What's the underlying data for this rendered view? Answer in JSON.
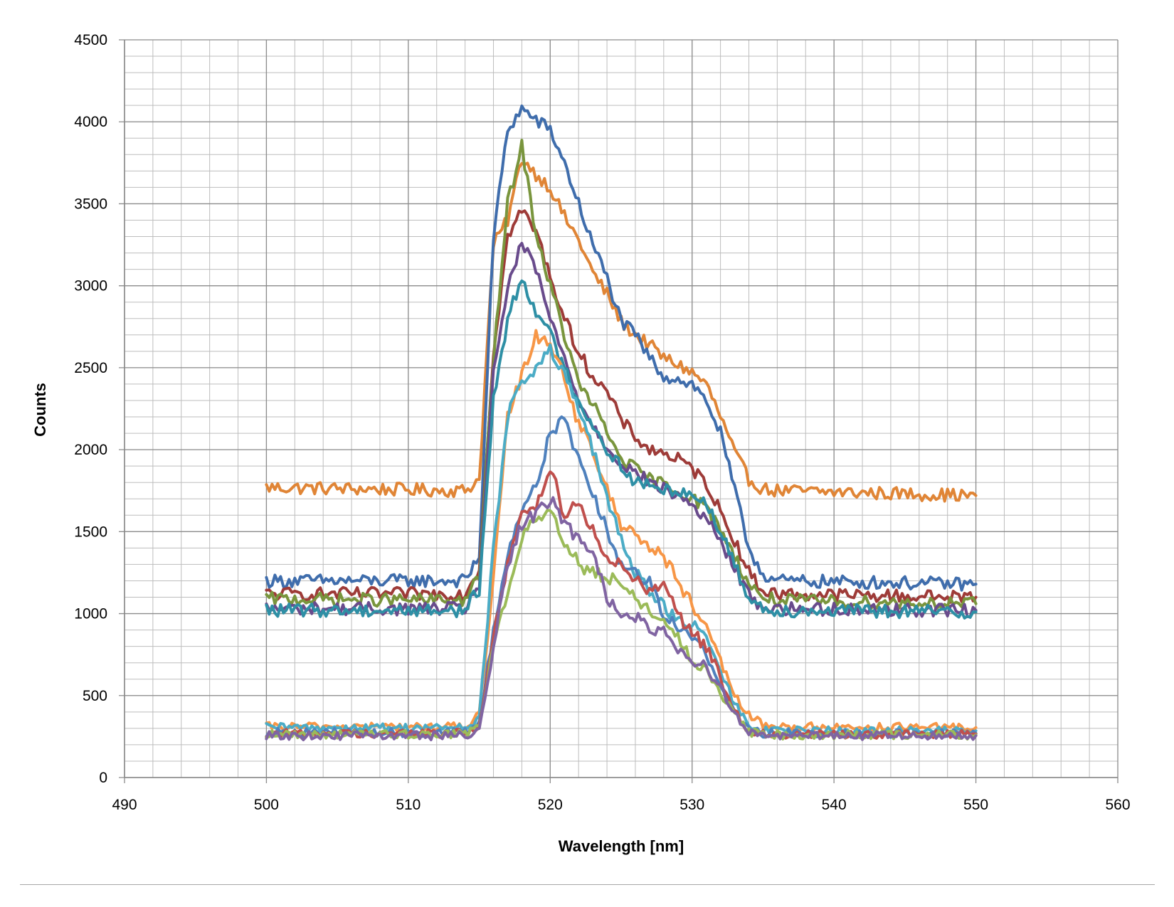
{
  "chart_data": {
    "type": "line",
    "title": "",
    "xlabel": "Wavelength [nm]",
    "ylabel": "Counts",
    "xlim": [
      490,
      560
    ],
    "ylim": [
      0,
      4500
    ],
    "x_ticks": [
      490,
      500,
      510,
      520,
      530,
      540,
      550,
      560
    ],
    "y_ticks": [
      0,
      500,
      1000,
      1500,
      2000,
      2500,
      3000,
      3500,
      4000,
      4500
    ],
    "x_minor_step": 2,
    "y_minor_step": 100,
    "grid": "on (major and minor)",
    "legend": "none",
    "series": [
      {
        "color": "#E08536",
        "x": [
          500,
          514,
          515,
          516,
          517,
          518,
          519,
          520,
          521,
          522,
          523,
          524,
          525,
          526,
          527,
          528,
          529,
          530,
          531,
          532,
          533,
          534,
          535,
          536,
          550
        ],
        "y": [
          1770,
          1750,
          1820,
          3250,
          3400,
          3780,
          3680,
          3600,
          3420,
          3280,
          3080,
          2950,
          2780,
          2700,
          2640,
          2560,
          2520,
          2470,
          2400,
          2200,
          1980,
          1820,
          1760,
          1750,
          1720
        ]
      },
      {
        "color": "#3F6DAC",
        "x": [
          500,
          514,
          515,
          516,
          517,
          518,
          519,
          520,
          521,
          522,
          523,
          524,
          525,
          526,
          527,
          528,
          529,
          530,
          531,
          532,
          533,
          534,
          535,
          536,
          550
        ],
        "y": [
          1200,
          1200,
          1350,
          3300,
          3950,
          4080,
          4010,
          3950,
          3750,
          3500,
          3250,
          3050,
          2780,
          2700,
          2560,
          2450,
          2430,
          2400,
          2300,
          2100,
          1750,
          1400,
          1240,
          1200,
          1180
        ]
      },
      {
        "color": "#9E3B38",
        "x": [
          500,
          514,
          515,
          516,
          517,
          518,
          519,
          520,
          521,
          522,
          523,
          524,
          525,
          526,
          527,
          528,
          529,
          530,
          531,
          532,
          533,
          534,
          535,
          536,
          550
        ],
        "y": [
          1120,
          1120,
          1280,
          2600,
          3300,
          3460,
          3330,
          3060,
          2800,
          2600,
          2450,
          2350,
          2180,
          2080,
          2000,
          1980,
          1940,
          1880,
          1800,
          1620,
          1450,
          1250,
          1140,
          1120,
          1100
        ]
      },
      {
        "color": "#79953D",
        "x": [
          500,
          514,
          515,
          516,
          517,
          518,
          519,
          520,
          521,
          522,
          523,
          524,
          525,
          526,
          527,
          528,
          529,
          530,
          531,
          532,
          533,
          534,
          535,
          536,
          550
        ],
        "y": [
          1090,
          1080,
          1230,
          2550,
          3500,
          3850,
          3320,
          3000,
          2700,
          2400,
          2280,
          2100,
          1950,
          1880,
          1820,
          1790,
          1750,
          1710,
          1640,
          1520,
          1350,
          1180,
          1100,
          1080,
          1060
        ]
      },
      {
        "color": "#694B8C",
        "x": [
          500,
          514,
          515,
          516,
          517,
          518,
          519,
          520,
          521,
          522,
          523,
          524,
          525,
          526,
          527,
          528,
          529,
          530,
          531,
          532,
          533,
          534,
          535,
          536,
          550
        ],
        "y": [
          1030,
          1030,
          1180,
          2450,
          3000,
          3250,
          3100,
          2800,
          2550,
          2300,
          2150,
          2020,
          1920,
          1860,
          1800,
          1760,
          1720,
          1660,
          1580,
          1440,
          1280,
          1110,
          1040,
          1030,
          1020
        ]
      },
      {
        "color": "#2E8FA5",
        "x": [
          500,
          514,
          515,
          516,
          517,
          518,
          519,
          520,
          521,
          522,
          523,
          524,
          525,
          526,
          527,
          528,
          529,
          530,
          531,
          532,
          533,
          534,
          535,
          536,
          550
        ],
        "y": [
          1020,
          1020,
          1150,
          2300,
          2800,
          3050,
          2850,
          2700,
          2500,
          2300,
          2150,
          2000,
          1900,
          1800,
          1780,
          1750,
          1760,
          1720,
          1680,
          1500,
          1300,
          1100,
          1030,
          1020,
          1010
        ]
      },
      {
        "color": "#F79646",
        "x": [
          500,
          514,
          515,
          516,
          517,
          518,
          519,
          520,
          521,
          522,
          523,
          524,
          525,
          526,
          527,
          528,
          529,
          530,
          531,
          532,
          533,
          534,
          535,
          536,
          550
        ],
        "y": [
          310,
          310,
          380,
          1200,
          2200,
          2450,
          2700,
          2650,
          2450,
          2150,
          2000,
          1750,
          1550,
          1500,
          1400,
          1350,
          1200,
          1050,
          900,
          700,
          500,
          380,
          320,
          310,
          305
        ]
      },
      {
        "color": "#4BACC6",
        "x": [
          500,
          514,
          515,
          516,
          517,
          518,
          519,
          520,
          521,
          522,
          523,
          524,
          525,
          526,
          527,
          528,
          529,
          530,
          531,
          532,
          533,
          534,
          535,
          536,
          550
        ],
        "y": [
          305,
          305,
          360,
          1400,
          2200,
          2420,
          2500,
          2600,
          2450,
          2250,
          2000,
          1700,
          1450,
          1250,
          1150,
          1050,
          950,
          930,
          850,
          650,
          450,
          320,
          290,
          285,
          285
        ]
      },
      {
        "color": "#4F81BD",
        "x": [
          500,
          514,
          515,
          516,
          517,
          518,
          519,
          520,
          521,
          522,
          523,
          524,
          525,
          526,
          527,
          528,
          529,
          530,
          531,
          532,
          533,
          534,
          535,
          536,
          550
        ],
        "y": [
          275,
          275,
          330,
          900,
          1350,
          1650,
          1780,
          2100,
          2180,
          1950,
          1750,
          1500,
          1300,
          1250,
          1200,
          1000,
          920,
          850,
          750,
          580,
          400,
          290,
          270,
          270,
          270
        ]
      },
      {
        "color": "#C0504D",
        "x": [
          500,
          514,
          515,
          516,
          517,
          518,
          519,
          520,
          521,
          522,
          523,
          524,
          525,
          526,
          527,
          528,
          529,
          530,
          531,
          532,
          533,
          534,
          535,
          536,
          550
        ],
        "y": [
          270,
          270,
          320,
          850,
          1300,
          1600,
          1650,
          1900,
          1600,
          1700,
          1500,
          1350,
          1300,
          1200,
          1150,
          1200,
          1000,
          880,
          800,
          600,
          400,
          290,
          265,
          265,
          265
        ]
      },
      {
        "color": "#9BBB59",
        "x": [
          500,
          514,
          515,
          516,
          517,
          518,
          519,
          520,
          521,
          522,
          523,
          524,
          525,
          526,
          527,
          528,
          529,
          530,
          531,
          532,
          533,
          534,
          535,
          536,
          550
        ],
        "y": [
          265,
          265,
          310,
          800,
          1150,
          1450,
          1600,
          1620,
          1450,
          1300,
          1250,
          1220,
          1180,
          1100,
          1020,
          950,
          850,
          720,
          650,
          520,
          380,
          280,
          260,
          260,
          260
        ]
      },
      {
        "color": "#8064A2",
        "x": [
          500,
          514,
          515,
          516,
          517,
          518,
          519,
          520,
          521,
          522,
          523,
          524,
          525,
          526,
          527,
          528,
          529,
          530,
          531,
          532,
          533,
          534,
          535,
          536,
          550
        ],
        "y": [
          255,
          255,
          300,
          800,
          1300,
          1550,
          1600,
          1700,
          1550,
          1450,
          1350,
          1100,
          1000,
          980,
          920,
          880,
          780,
          720,
          680,
          550,
          380,
          270,
          255,
          255,
          255
        ]
      }
    ]
  }
}
